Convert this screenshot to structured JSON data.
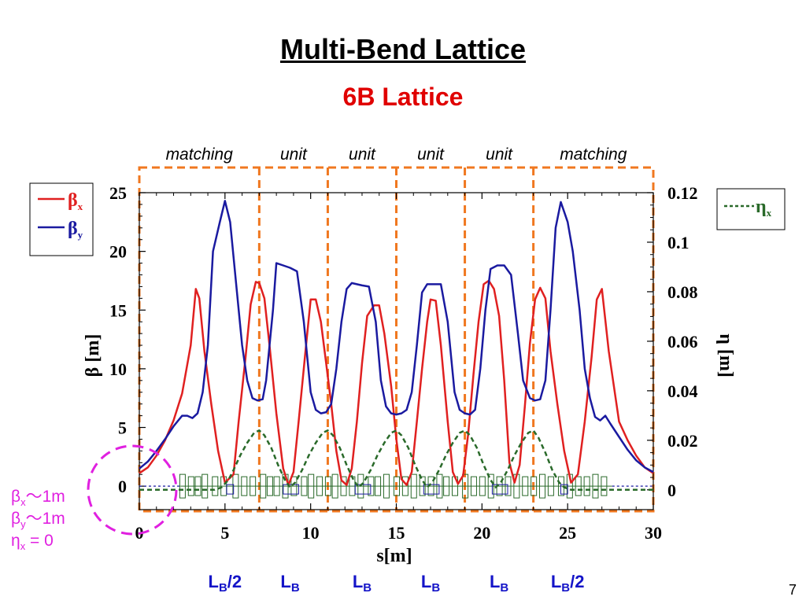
{
  "title": "Multi-Bend Lattice",
  "subtitle": "6B Lattice",
  "page_number": "7",
  "chart_data": {
    "type": "line",
    "xlabel": "s[m]",
    "ylabel": "β [m]",
    "y2label": "η [m]",
    "xlim": [
      0,
      30
    ],
    "ylim": [
      -2,
      25
    ],
    "y2lim": [
      -0.008,
      0.12
    ],
    "x_ticks": [
      "0",
      "5",
      "10",
      "15",
      "20",
      "25",
      "30"
    ],
    "y_ticks": [
      "0",
      "5",
      "10",
      "15",
      "20",
      "25"
    ],
    "y2_ticks": [
      "0",
      "0.02",
      "0.04",
      "0.06",
      "0.08",
      "0.1",
      "0.12"
    ],
    "section_labels": [
      "matching",
      "unit",
      "unit",
      "unit",
      "unit",
      "matching"
    ],
    "section_boundaries": [
      0,
      7,
      11,
      15,
      19,
      23,
      30
    ],
    "bend_labels": [
      {
        "text": "L",
        "sub": "B",
        "suffix": "/2",
        "x": 5
      },
      {
        "text": "L",
        "sub": "B",
        "suffix": "",
        "x": 8.8
      },
      {
        "text": "L",
        "sub": "B",
        "suffix": "",
        "x": 13
      },
      {
        "text": "L",
        "sub": "B",
        "suffix": "",
        "x": 17
      },
      {
        "text": "L",
        "sub": "B",
        "suffix": "",
        "x": 21
      },
      {
        "text": "L",
        "sub": "B",
        "suffix": "/2",
        "x": 25
      }
    ],
    "legend_left": [
      {
        "symbol": "β",
        "sub": "x",
        "color": "#e02020"
      },
      {
        "symbol": "β",
        "sub": "y",
        "color": "#1a1aa0"
      }
    ],
    "legend_right": [
      {
        "symbol": "η",
        "sub": "x",
        "color": "#2a6a2a"
      }
    ],
    "initial_conditions": [
      {
        "symbol": "β",
        "sub": "x",
        "rest": "〜1m"
      },
      {
        "symbol": "β",
        "sub": "y",
        "rest": "〜1m"
      },
      {
        "symbol": "η",
        "sub": "x",
        "rest": " = 0"
      }
    ],
    "series": [
      {
        "name": "βx",
        "color": "#e02020",
        "x": [
          0,
          0.5,
          1,
          1.5,
          2,
          2.5,
          3,
          3.3,
          3.5,
          3.8,
          4.2,
          4.6,
          5,
          5.5,
          5.8,
          6.2,
          6.5,
          6.8,
          7,
          7.3,
          7.6,
          8,
          8.4,
          8.7,
          9,
          9.3,
          9.7,
          10,
          10.3,
          10.6,
          10.9,
          11.2,
          11.5,
          11.8,
          12.1,
          12.4,
          12.7,
          13,
          13.3,
          13.7,
          14,
          14.3,
          14.7,
          15,
          15.3,
          15.6,
          15.9,
          16.2,
          16.5,
          16.8,
          17,
          17.3,
          17.6,
          18,
          18.3,
          18.6,
          18.9,
          19.2,
          19.5,
          19.8,
          20.1,
          20.4,
          20.7,
          21,
          21.3,
          21.6,
          21.9,
          22.2,
          22.5,
          22.8,
          23.1,
          23.4,
          23.7,
          24,
          24.4,
          24.8,
          25.2,
          25.6,
          26,
          26.4,
          26.7,
          27,
          27.4,
          28,
          28.5,
          29,
          29.5,
          30
        ],
        "y": [
          1.1,
          1.6,
          2.6,
          3.9,
          5.6,
          7.9,
          12,
          16.8,
          16,
          11.5,
          7,
          3,
          0.3,
          1,
          5.5,
          11,
          15.5,
          17.4,
          17.3,
          16,
          12,
          6.2,
          1.5,
          0.1,
          1.2,
          5.5,
          11.5,
          15.9,
          15.9,
          14,
          10.5,
          7,
          3,
          0.5,
          0.1,
          1.5,
          5.5,
          10.5,
          14.5,
          15.4,
          15.4,
          13,
          8.5,
          4,
          0.6,
          0.1,
          1.2,
          5.5,
          10,
          14,
          15.9,
          15.8,
          12,
          5.5,
          1.2,
          0.2,
          0.9,
          4.5,
          9.5,
          14,
          17.2,
          17.5,
          16.8,
          14.5,
          9,
          2,
          0.3,
          1.8,
          6.8,
          12.2,
          15.9,
          16.9,
          16,
          11.5,
          7,
          3,
          0.3,
          1,
          5.5,
          11,
          15.9,
          16.8,
          11.5,
          5.5,
          3.9,
          2.6,
          1.6,
          1.1
        ]
      },
      {
        "name": "βy",
        "color": "#1a1aa0",
        "x": [
          0,
          0.5,
          1,
          1.5,
          2,
          2.5,
          2.8,
          3.1,
          3.4,
          3.7,
          4,
          4.3,
          4.7,
          5,
          5.3,
          5.6,
          6,
          6.3,
          6.6,
          6.9,
          7.2,
          7.4,
          7.8,
          8,
          8.4,
          8.8,
          9.2,
          9.6,
          10,
          10.3,
          10.6,
          10.9,
          11.2,
          11.5,
          11.8,
          12.1,
          12.4,
          12.7,
          13,
          13.4,
          13.8,
          14.1,
          14.4,
          14.7,
          15,
          15.3,
          15.6,
          15.9,
          16.2,
          16.5,
          16.8,
          17.2,
          17.6,
          18,
          18.4,
          18.7,
          19,
          19.3,
          19.6,
          19.9,
          20.2,
          20.5,
          20.9,
          21.3,
          21.7,
          22.1,
          22.4,
          22.8,
          23.1,
          23.4,
          23.7,
          24,
          24.3,
          24.6,
          25,
          25.3,
          25.7,
          26,
          26.3,
          26.6,
          26.9,
          27.2,
          27.5,
          28,
          28.5,
          29,
          29.5,
          30
        ],
        "y": [
          1.5,
          2.1,
          3,
          4,
          5.1,
          6,
          6,
          5.8,
          6.2,
          8,
          12,
          20,
          22.5,
          24.3,
          22.5,
          18,
          12,
          9,
          7.5,
          7.3,
          7.4,
          9,
          15,
          19,
          18.8,
          18.6,
          18.3,
          14,
          8,
          6.5,
          6.2,
          6.3,
          7,
          10,
          14,
          16.8,
          17.3,
          17.2,
          17.1,
          17,
          14,
          9,
          6.8,
          6.2,
          6.1,
          6.2,
          6.5,
          8,
          12,
          16.5,
          17.2,
          17.2,
          17.2,
          14,
          8,
          6.5,
          6.2,
          6.1,
          6.5,
          10,
          15,
          18.5,
          18.8,
          18.8,
          18,
          13,
          9,
          7.5,
          7.3,
          7.4,
          9,
          15,
          22,
          24.2,
          22.5,
          20,
          15,
          10,
          7.5,
          5.9,
          5.6,
          6,
          5.3,
          4.2,
          3.1,
          2.2,
          1.6,
          1.2
        ]
      },
      {
        "name": "ηx",
        "color": "#2a6a2a",
        "x": [
          0,
          1,
          2,
          3,
          3.5,
          4,
          4.4,
          4.8,
          5.2,
          5.5,
          5.9,
          6.3,
          6.7,
          7,
          7.3,
          7.7,
          8.1,
          8.5,
          8.8,
          9.1,
          9.5,
          9.9,
          10.3,
          10.7,
          11,
          11.3,
          11.7,
          12.1,
          12.5,
          12.8,
          13.1,
          13.5,
          13.9,
          14.3,
          14.7,
          15,
          15.3,
          15.7,
          16.1,
          16.5,
          16.8,
          17.1,
          17.5,
          17.9,
          18.3,
          18.7,
          19,
          19.3,
          19.7,
          20.1,
          20.5,
          20.8,
          21.1,
          21.5,
          21.9,
          22.3,
          22.7,
          23,
          23.3,
          23.7,
          24.1,
          24.5,
          24.8,
          25.2,
          25.6,
          26,
          26.5,
          27,
          28,
          29,
          30
        ],
        "y": [
          0,
          0,
          0,
          0,
          0,
          0,
          0,
          0.001,
          0.004,
          0.008,
          0.014,
          0.019,
          0.023,
          0.024,
          0.022,
          0.017,
          0.01,
          0.004,
          0.001,
          0.003,
          0.008,
          0.014,
          0.019,
          0.023,
          0.024,
          0.022,
          0.017,
          0.01,
          0.004,
          0.001,
          0.003,
          0.008,
          0.014,
          0.019,
          0.023,
          0.024,
          0.022,
          0.017,
          0.01,
          0.004,
          0.001,
          0.003,
          0.008,
          0.014,
          0.019,
          0.023,
          0.024,
          0.022,
          0.017,
          0.01,
          0.004,
          0.001,
          0.003,
          0.008,
          0.014,
          0.019,
          0.023,
          0.024,
          0.021,
          0.015,
          0.008,
          0.003,
          0.001,
          0,
          0,
          0,
          0,
          0,
          0,
          0,
          0
        ]
      }
    ],
    "magnet_x": [
      2.5,
      3,
      3.4,
      3.8,
      4.4,
      4.9,
      5.6,
      6.1,
      6.6,
      7.2,
      7.6,
      8,
      8.5,
      9,
      9.6,
      10,
      10.5,
      11,
      11.4,
      11.9,
      12.4,
      12.9,
      13.5,
      13.9,
      14.4,
      15,
      15.5,
      16,
      16.5,
      17,
      17.5,
      17.9,
      18.4,
      19,
      19.5,
      20,
      20.5,
      21,
      21.5,
      22,
      22.5,
      23,
      23.5,
      24,
      24.6,
      25.1,
      25.6,
      26.1,
      26.6,
      27.1
    ]
  }
}
